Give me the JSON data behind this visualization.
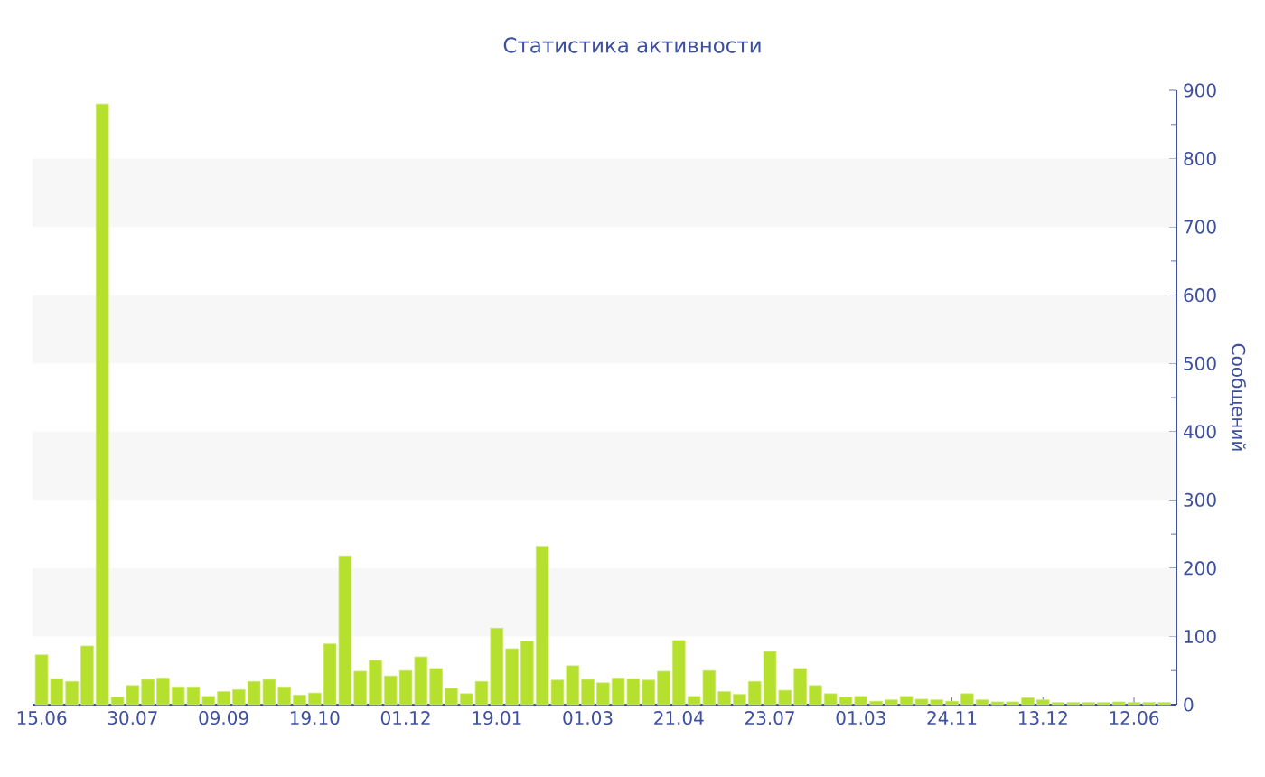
{
  "chart_data": {
    "type": "bar",
    "title": "Статистика активности",
    "ylabel": "Сообщений",
    "categories": [
      "15.06",
      null,
      null,
      null,
      null,
      null,
      "30.07",
      null,
      null,
      null,
      null,
      null,
      "09.09",
      null,
      null,
      null,
      null,
      null,
      "19.10",
      null,
      null,
      null,
      null,
      null,
      "01.12",
      null,
      null,
      null,
      null,
      null,
      "19.01",
      null,
      null,
      null,
      null,
      null,
      "01.03",
      null,
      null,
      null,
      null,
      null,
      "21.04",
      null,
      null,
      null,
      null,
      null,
      "23.07",
      null,
      null,
      null,
      null,
      null,
      "01.03",
      null,
      null,
      null,
      null,
      null,
      "24.11",
      null,
      null,
      null,
      null,
      null,
      "13.12",
      null,
      null,
      null,
      null,
      null,
      "12.06",
      null,
      null
    ],
    "values": [
      73,
      38,
      34,
      86,
      880,
      11,
      28,
      37,
      39,
      26,
      26,
      12,
      19,
      22,
      34,
      37,
      26,
      14,
      17,
      89,
      218,
      49,
      65,
      42,
      50,
      70,
      53,
      24,
      16,
      34,
      112,
      82,
      93,
      232,
      36,
      57,
      37,
      32,
      39,
      38,
      36,
      49,
      94,
      12,
      50,
      19,
      15,
      34,
      78,
      21,
      53,
      28,
      16,
      11,
      12,
      5,
      7,
      12,
      8,
      7,
      5,
      16,
      7,
      4,
      4,
      10,
      7,
      3,
      3,
      3,
      3,
      4,
      3,
      3,
      3
    ],
    "color": "#b5e02d",
    "ylim": [
      0,
      900
    ],
    "yticks": [
      0,
      100,
      200,
      300,
      400,
      500,
      600,
      700,
      800,
      900
    ],
    "bands": [
      {
        "axis": "y",
        "from": 100,
        "to": 200,
        "color": "#f7f7f7"
      },
      {
        "axis": "y",
        "from": 300,
        "to": 400,
        "color": "#f7f7f7"
      },
      {
        "axis": "y",
        "from": 500,
        "to": 600,
        "color": "#f7f7f7"
      },
      {
        "axis": "y",
        "from": 700,
        "to": 800,
        "color": "#f7f7f7"
      }
    ]
  }
}
